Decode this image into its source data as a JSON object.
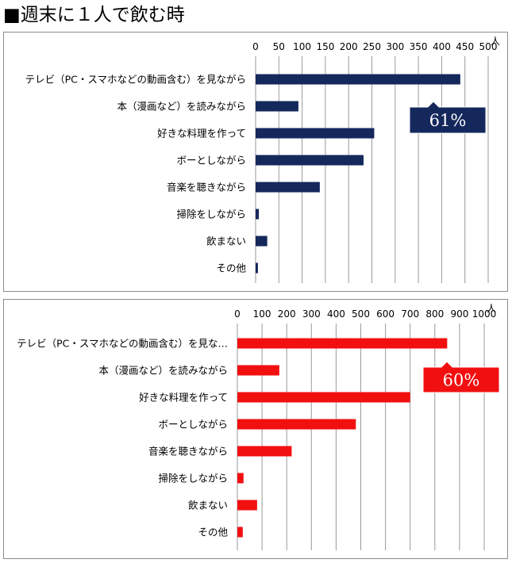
{
  "title": "■週末に１人で飲む時",
  "colors": {
    "navy": "#14285c",
    "red": "#f20f10",
    "grid": "#9a9a9a"
  },
  "chart_data": [
    {
      "type": "bar",
      "orientation": "horizontal",
      "unit": "人",
      "categories": [
        "テレビ（PC・スマホなどの動画含む）を見ながら",
        "本（漫画など）を読みながら",
        "好きな料理を作って",
        "ボーとしながら",
        "音楽を聴きながら",
        "掃除をしながら",
        "飲まない",
        "その他"
      ],
      "values": [
        440,
        92,
        255,
        232,
        138,
        7,
        25,
        5
      ],
      "xlim": [
        0,
        500
      ],
      "ticks": [
        "0",
        "50",
        "100",
        "150",
        "200",
        "250",
        "300",
        "350",
        "400",
        "450",
        "500"
      ],
      "grid": true,
      "color": "#14285c",
      "annotation": "61%"
    },
    {
      "type": "bar",
      "orientation": "horizontal",
      "unit": "人",
      "categories": [
        "テレビ（PC・スマホなどの動画含む）を見な…",
        "本（漫画など）を読みながら",
        "好きな料理を作って",
        "ボーとしながら",
        "音楽を聴きながら",
        "掃除をしながら",
        "飲まない",
        "その他"
      ],
      "values": [
        850,
        170,
        700,
        480,
        220,
        25,
        80,
        22
      ],
      "xlim": [
        0,
        1000
      ],
      "ticks": [
        "0",
        "100",
        "200",
        "300",
        "400",
        "500",
        "600",
        "700",
        "800",
        "900",
        "1000"
      ],
      "grid": true,
      "color": "#f20f10",
      "annotation": "60%"
    }
  ]
}
